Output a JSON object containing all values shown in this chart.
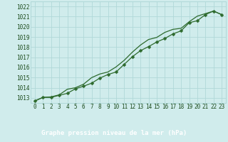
{
  "title": "Graphe pression niveau de la mer (hPa)",
  "hours": [
    0,
    1,
    2,
    3,
    4,
    5,
    6,
    7,
    8,
    9,
    10,
    11,
    12,
    13,
    14,
    15,
    16,
    17,
    18,
    19,
    20,
    21,
    22,
    23
  ],
  "line_marked_y": [
    1012.7,
    1013.05,
    1013.05,
    1013.25,
    1013.45,
    1013.9,
    1014.15,
    1014.45,
    1014.95,
    1015.3,
    1015.55,
    1016.3,
    1017.05,
    1017.65,
    1018.05,
    1018.5,
    1018.85,
    1019.3,
    1019.6,
    1020.4,
    1020.6,
    1021.2,
    1021.55,
    1021.2
  ],
  "line_smooth_y": [
    1012.7,
    1013.05,
    1013.1,
    1013.3,
    1013.85,
    1014.0,
    1014.35,
    1015.0,
    1015.35,
    1015.55,
    1016.05,
    1016.7,
    1017.5,
    1018.2,
    1018.75,
    1018.95,
    1019.45,
    1019.75,
    1019.85,
    1020.5,
    1021.05,
    1021.3,
    1021.55,
    1021.2
  ],
  "ylim_min": 1012.5,
  "ylim_max": 1022.5,
  "yticks": [
    1013,
    1014,
    1015,
    1016,
    1017,
    1018,
    1019,
    1020,
    1021,
    1022
  ],
  "line_color": "#2d6a2d",
  "bg_color": "#d0ecec",
  "grid_color": "#b0d8d8",
  "title_bg_color": "#336633",
  "title_text_color": "#ffffff",
  "tick_color": "#1a4a1a",
  "tick_fontsize": 5.5,
  "title_fontsize": 6.5,
  "marker_size": 2.5,
  "line_width": 0.9
}
